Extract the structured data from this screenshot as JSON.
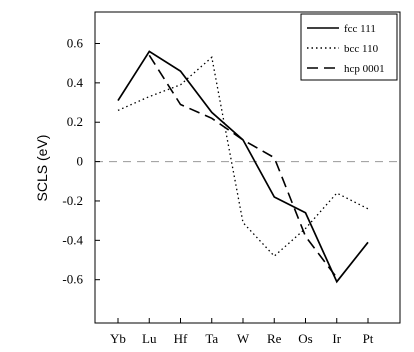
{
  "chart_data": {
    "type": "line",
    "title": "",
    "xlabel": "",
    "ylabel": "SCLS  (eV)",
    "categories": [
      "Yb",
      "Lu",
      "Hf",
      "Ta",
      "W",
      "Re",
      "Os",
      "Ir",
      "Pt"
    ],
    "ylim": [
      -0.82,
      0.76
    ],
    "yticks": [
      -0.6,
      -0.4,
      -0.2,
      0,
      0.2,
      0.4,
      0.6
    ],
    "ytick_labels": [
      "-0.6",
      "-0.4",
      "-0.2",
      "0",
      "0.2",
      "0.4",
      "0.6"
    ],
    "grid": false,
    "reference_line": 0,
    "legend_position": "top-right",
    "series": [
      {
        "name": "fcc 111",
        "style": "solid",
        "values": [
          0.31,
          0.56,
          0.46,
          0.25,
          0.11,
          -0.18,
          -0.26,
          -0.61,
          -0.41
        ]
      },
      {
        "name": "bcc 110",
        "style": "dotted",
        "values": [
          0.26,
          0.33,
          0.39,
          0.53,
          -0.31,
          -0.48,
          -0.34,
          -0.16,
          -0.24
        ]
      },
      {
        "name": "hcp 0001",
        "style": "dashed",
        "values": [
          null,
          0.54,
          0.29,
          0.22,
          0.11,
          0.02,
          -0.38,
          -0.59,
          null
        ]
      }
    ]
  }
}
